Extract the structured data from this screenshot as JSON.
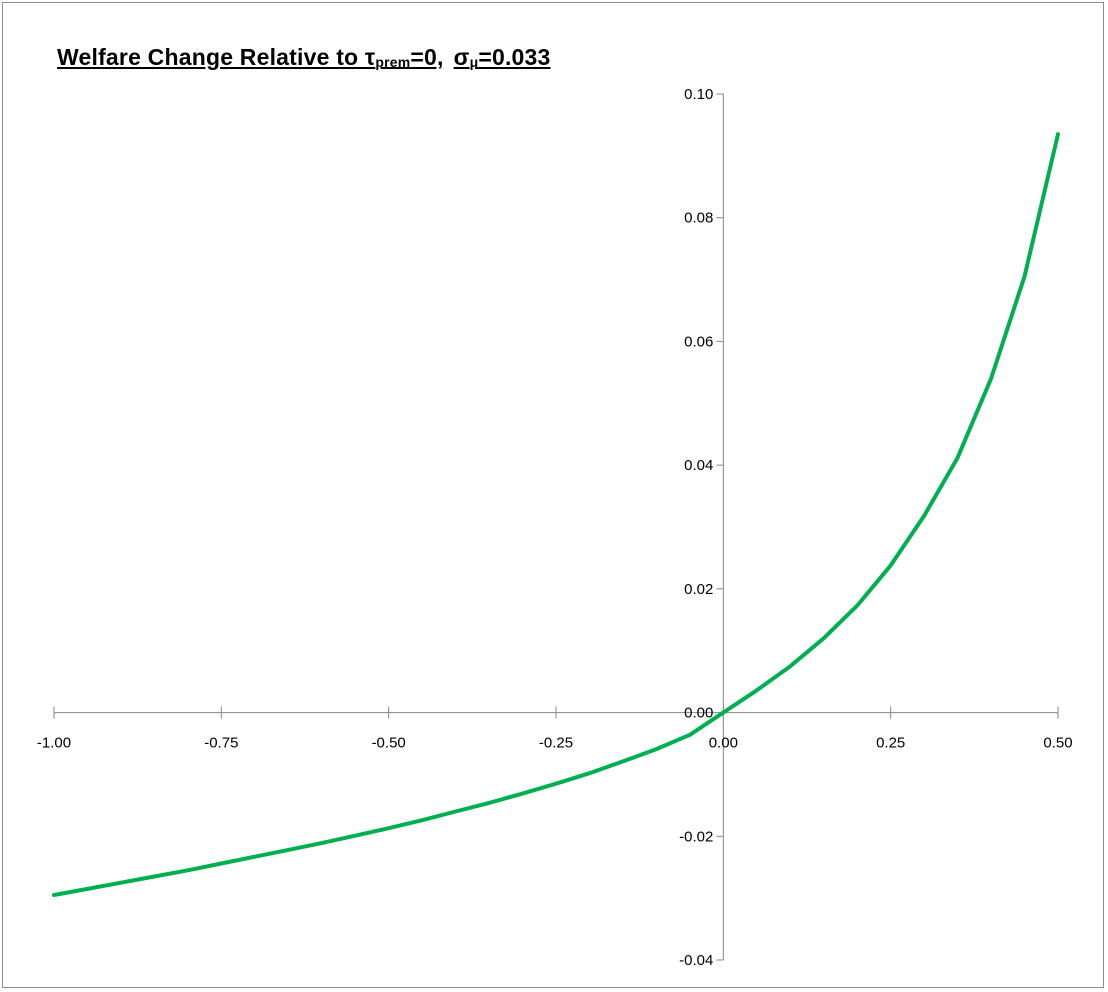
{
  "title": {
    "prefix": "Welfare Change Relative to τ",
    "sub1": "prem",
    "mid": "=0,",
    "sigma": "σ",
    "sub2": "μ",
    "suffix": "=0.033"
  },
  "chart_data": {
    "type": "line",
    "title": "Welfare Change Relative to τprem=0, σμ=0.033",
    "xlabel": "",
    "ylabel": "",
    "xlim": [
      -1.0,
      0.5
    ],
    "ylim": [
      -0.04,
      0.1
    ],
    "grid": false,
    "legend": "none",
    "x_ticks": [
      "-1.00",
      "-0.75",
      "-0.50",
      "-0.25",
      "0.00",
      "0.25",
      "0.50"
    ],
    "y_ticks": [
      "-0.04",
      "-0.02",
      "0.00",
      "0.02",
      "0.04",
      "0.06",
      "0.08",
      "0.10"
    ],
    "series": [
      {
        "color": "#00b050",
        "x": [
          -1.0,
          -0.95,
          -0.9,
          -0.85,
          -0.8,
          -0.75,
          -0.7,
          -0.65,
          -0.6,
          -0.55,
          -0.5,
          -0.45,
          -0.4,
          -0.35,
          -0.3,
          -0.25,
          -0.2,
          -0.15,
          -0.1,
          -0.05,
          0.0,
          0.05,
          0.1,
          0.15,
          0.2,
          0.25,
          0.3,
          0.35,
          0.4,
          0.45,
          0.5
        ],
        "y": [
          -0.0295,
          -0.0285,
          -0.0275,
          -0.0265,
          -0.0255,
          -0.0244,
          -0.0233,
          -0.0222,
          -0.0211,
          -0.0199,
          -0.0187,
          -0.0174,
          -0.016,
          -0.0146,
          -0.0131,
          -0.0115,
          -0.0098,
          -0.0079,
          -0.0059,
          -0.0036,
          0.0,
          0.0036,
          0.0075,
          0.012,
          0.0173,
          0.0238,
          0.0318,
          0.0412,
          0.054,
          0.0705,
          0.0935
        ]
      }
    ]
  }
}
